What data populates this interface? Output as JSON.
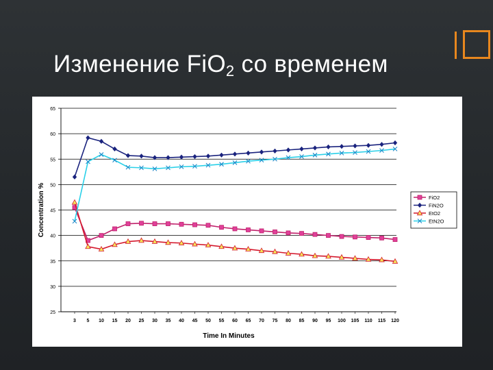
{
  "slide": {
    "title_main": "Изменение FiO",
    "title_sub": "2",
    "title_rest": " со временем",
    "accent_color": "#e8871e",
    "background_color": "#262a2d"
  },
  "chart_data": {
    "type": "line",
    "title": "",
    "xlabel": "Time In Minutes",
    "ylabel": "Concentration %",
    "categories": [
      "3",
      "5",
      "10",
      "15",
      "20",
      "25",
      "30",
      "35",
      "40",
      "45",
      "50",
      "55",
      "60",
      "65",
      "70",
      "75",
      "80",
      "85",
      "90",
      "95",
      "100",
      "105",
      "110",
      "115",
      "120"
    ],
    "ylim": [
      25,
      65
    ],
    "yticks": [
      25,
      30,
      35,
      40,
      45,
      50,
      55,
      60,
      65
    ],
    "grid": true,
    "legend_position": "right",
    "series": [
      {
        "name": "FiO2",
        "color": "#c0206a",
        "marker": "square",
        "values": [
          45.5,
          39.0,
          40.0,
          41.3,
          42.3,
          42.4,
          42.3,
          42.3,
          42.2,
          42.1,
          42.0,
          41.6,
          41.3,
          41.1,
          40.9,
          40.7,
          40.5,
          40.4,
          40.2,
          40.0,
          39.8,
          39.7,
          39.6,
          39.5,
          39.2
        ]
      },
      {
        "name": "FiN2O",
        "color": "#1a237e",
        "marker": "diamond",
        "values": [
          51.5,
          59.2,
          58.5,
          57.0,
          55.7,
          55.6,
          55.3,
          55.3,
          55.4,
          55.5,
          55.6,
          55.8,
          56.0,
          56.2,
          56.4,
          56.6,
          56.8,
          57.0,
          57.2,
          57.4,
          57.5,
          57.6,
          57.7,
          57.9,
          58.2
        ]
      },
      {
        "name": "EtO2",
        "color": "#d4182c",
        "marker": "triangle",
        "values": [
          46.5,
          37.8,
          37.3,
          38.2,
          38.8,
          39.0,
          38.8,
          38.6,
          38.5,
          38.3,
          38.1,
          37.8,
          37.5,
          37.3,
          37.0,
          36.8,
          36.5,
          36.3,
          36.0,
          35.9,
          35.7,
          35.5,
          35.3,
          35.2,
          34.9
        ]
      },
      {
        "name": "EtN2O",
        "color": "#2ad0e8",
        "marker": "x",
        "values": [
          42.8,
          54.5,
          55.9,
          54.8,
          53.4,
          53.3,
          53.1,
          53.3,
          53.5,
          53.6,
          53.8,
          54.0,
          54.3,
          54.6,
          54.8,
          55.0,
          55.3,
          55.5,
          55.8,
          56.0,
          56.2,
          56.3,
          56.5,
          56.7,
          57.0
        ]
      }
    ]
  }
}
